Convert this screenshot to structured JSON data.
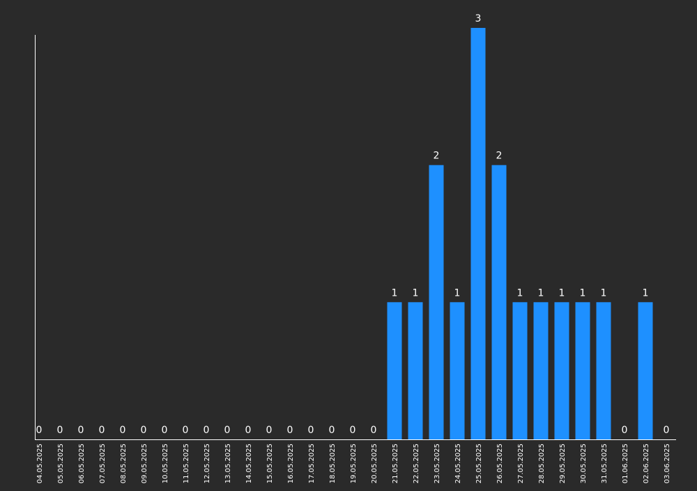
{
  "colors": {
    "background": "#2a2a2a",
    "bar": "#1e90ff",
    "axis": "#ffffff",
    "text": "#ffffff"
  },
  "chart_data": {
    "type": "bar",
    "categories": [
      "04.05.2025",
      "05.05.2025",
      "06.05.2025",
      "07.05.2025",
      "08.05.2025",
      "09.05.2025",
      "10.05.2025",
      "11.05.2025",
      "12.05.2025",
      "13.05.2025",
      "14.05.2025",
      "15.05.2025",
      "16.05.2025",
      "17.05.2025",
      "18.05.2025",
      "19.05.2025",
      "20.05.2025",
      "21.05.2025",
      "22.05.2025",
      "23.05.2025",
      "24.05.2025",
      "25.05.2025",
      "26.05.2025",
      "27.05.2025",
      "28.05.2025",
      "29.05.2025",
      "30.05.2025",
      "31.05.2025",
      "01.06.2025",
      "02.06.2025",
      "03.06.2025"
    ],
    "values": [
      0,
      0,
      0,
      0,
      0,
      0,
      0,
      0,
      0,
      0,
      0,
      0,
      0,
      0,
      0,
      0,
      0,
      1,
      1,
      2,
      1,
      3,
      2,
      1,
      1,
      1,
      1,
      1,
      0,
      1,
      0
    ],
    "title": "",
    "xlabel": "",
    "ylabel": "",
    "ylim": [
      0,
      3
    ],
    "grid": false,
    "data_labels": true
  }
}
